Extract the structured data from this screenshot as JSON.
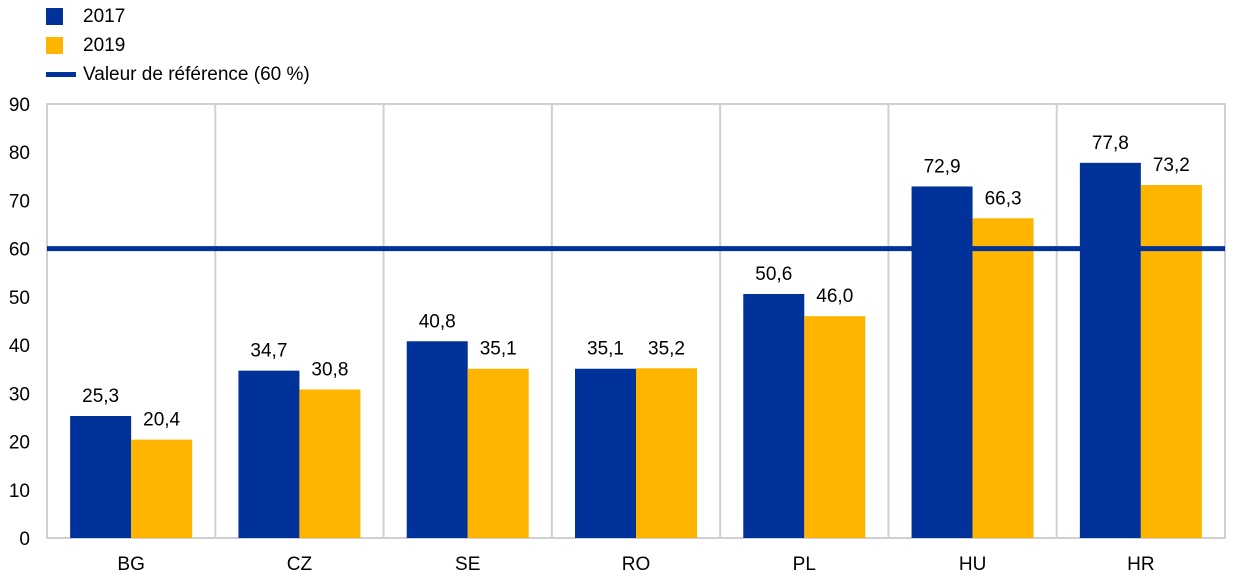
{
  "legend": {
    "items": [
      {
        "label": "2017",
        "color": "#003299"
      },
      {
        "label": "2019",
        "color": "#FFB400"
      },
      {
        "label": "Valeur de référence (60 %)",
        "color": "#003299"
      }
    ]
  },
  "chart_data": {
    "type": "bar",
    "categories": [
      "BG",
      "CZ",
      "SE",
      "RO",
      "PL",
      "HU",
      "HR"
    ],
    "series": [
      {
        "name": "2017",
        "color": "#003299",
        "values": [
          25.3,
          34.7,
          40.8,
          35.1,
          50.6,
          72.9,
          77.8
        ],
        "labels": [
          "25,3",
          "34,7",
          "40,8",
          "35,1",
          "50,6",
          "72,9",
          "77,8"
        ]
      },
      {
        "name": "2019",
        "color": "#FFB400",
        "values": [
          20.4,
          30.8,
          35.1,
          35.2,
          46.0,
          66.3,
          73.2
        ],
        "labels": [
          "20,4",
          "30,8",
          "35,1",
          "35,2",
          "46,0",
          "66,3",
          "73,2"
        ]
      }
    ],
    "reference_line": {
      "name": "Valeur de référence (60 %)",
      "value": 60,
      "color": "#003299"
    },
    "ylim": [
      0,
      90
    ],
    "yticks": [
      0,
      10,
      20,
      30,
      40,
      50,
      60,
      70,
      80,
      90
    ],
    "grid": "vertical separators and outer frame",
    "legend_position": "top-left",
    "title": "",
    "xlabel": "",
    "ylabel": ""
  }
}
